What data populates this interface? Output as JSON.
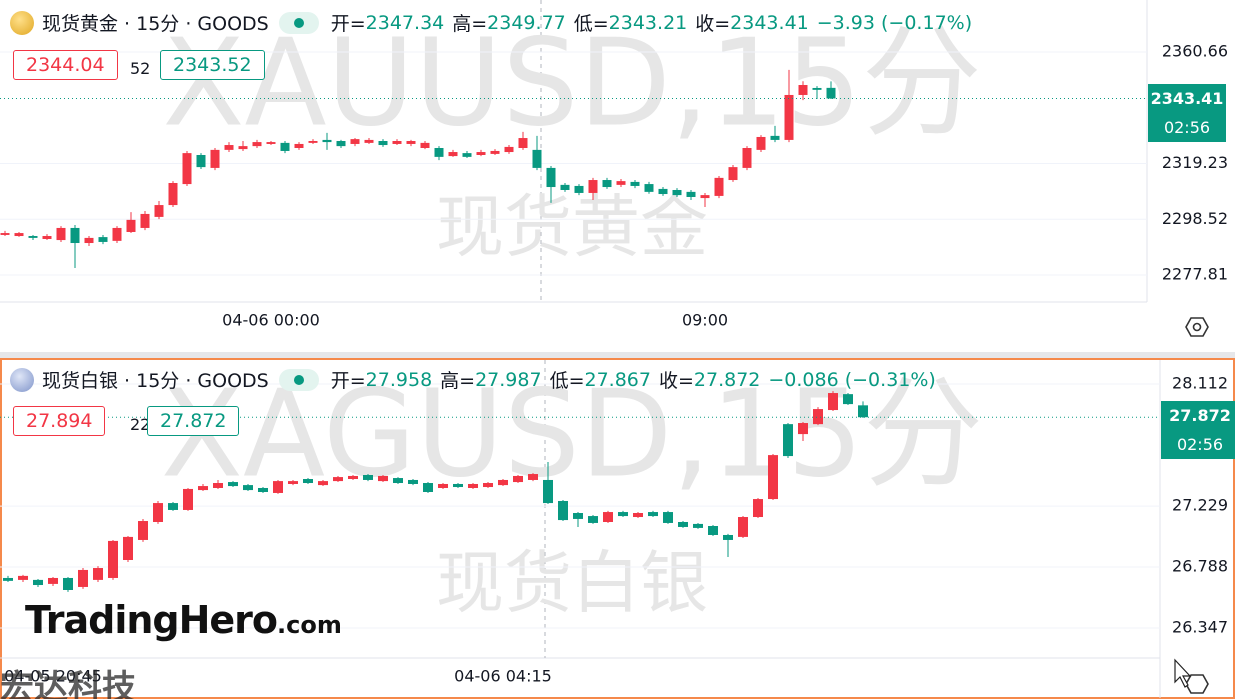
{
  "chart_data": [
    {
      "type": "candlestick",
      "title": "现货黄金 · 15分 · GOODS",
      "quote": [
        {
          "label": "开=",
          "value": "2347.34"
        },
        {
          "label": "高=",
          "value": "2349.77"
        },
        {
          "label": "低=",
          "value": "2343.21"
        },
        {
          "label": "收=",
          "value": "2343.41"
        }
      ],
      "change": "−3.93 (−0.17%)",
      "bid": "2344.04",
      "spread": "52",
      "ask": "2343.52",
      "last_price_label": "2343.41",
      "countdown": "02:56",
      "watermark": "XAUUSD,15分",
      "watermark_name": "现货黄金",
      "up_color": "#f23645",
      "down_color": "#089981",
      "ylim": [
        2267.79,
        2379.98
      ],
      "yticks": [
        2277.81,
        2298.52,
        2319.23,
        2360.66
      ],
      "grid": true,
      "categories": [
        null,
        null,
        null,
        null,
        null,
        null,
        null,
        null,
        null,
        null,
        null,
        null,
        null,
        null,
        null,
        null,
        null,
        null,
        null,
        "04-06 00:00",
        null,
        null,
        null,
        null,
        null,
        null,
        null,
        null,
        null,
        null,
        null,
        null,
        null,
        null,
        null,
        null,
        null,
        null,
        null,
        null,
        null,
        null,
        null,
        null,
        null,
        null,
        null,
        null,
        null,
        null,
        "09:00",
        null,
        null,
        null,
        null,
        null,
        null,
        null,
        null,
        null
      ],
      "ohlc": [
        [
          2292.7,
          2294.2,
          2292.3,
          2293.4
        ],
        [
          2292.3,
          2293.8,
          2292.0,
          2293.4
        ],
        [
          2292.3,
          2292.7,
          2290.8,
          2291.6
        ],
        [
          2291.2,
          2293.0,
          2290.8,
          2292.3
        ],
        [
          2290.8,
          2296.0,
          2290.1,
          2295.3
        ],
        [
          2295.3,
          2296.4,
          2280.4,
          2289.7
        ],
        [
          2289.7,
          2292.3,
          2288.6,
          2291.6
        ],
        [
          2291.9,
          2292.7,
          2289.3,
          2290.1
        ],
        [
          2290.5,
          2296.0,
          2289.7,
          2295.3
        ],
        [
          2293.8,
          2301.2,
          2293.4,
          2298.3
        ],
        [
          2295.3,
          2301.6,
          2294.5,
          2300.5
        ],
        [
          2299.4,
          2305.3,
          2298.6,
          2303.8
        ],
        [
          2303.8,
          2312.7,
          2303.1,
          2312.0
        ],
        [
          2311.6,
          2323.9,
          2310.9,
          2323.1
        ],
        [
          2322.4,
          2323.1,
          2317.2,
          2317.9
        ],
        [
          2317.6,
          2325.0,
          2316.8,
          2324.3
        ],
        [
          2324.3,
          2327.2,
          2323.5,
          2326.1
        ],
        [
          2324.6,
          2327.6,
          2323.9,
          2325.7
        ],
        [
          2325.7,
          2328.0,
          2325.0,
          2327.2
        ],
        [
          2326.5,
          2327.6,
          2326.1,
          2327.2
        ],
        [
          2326.9,
          2327.6,
          2323.1,
          2323.9
        ],
        [
          2325.0,
          2327.2,
          2324.3,
          2326.5
        ],
        [
          2326.9,
          2328.3,
          2326.5,
          2327.6
        ],
        [
          2328.0,
          2330.6,
          2324.3,
          2327.2
        ],
        [
          2327.6,
          2328.0,
          2325.0,
          2325.7
        ],
        [
          2326.5,
          2328.7,
          2325.7,
          2328.3
        ],
        [
          2326.9,
          2328.7,
          2326.5,
          2328.0
        ],
        [
          2327.6,
          2328.3,
          2325.4,
          2326.1
        ],
        [
          2326.5,
          2328.3,
          2326.1,
          2327.6
        ],
        [
          2326.5,
          2328.0,
          2325.7,
          2327.6
        ],
        [
          2325.0,
          2327.6,
          2324.6,
          2326.9
        ],
        [
          2325.0,
          2325.7,
          2320.5,
          2321.7
        ],
        [
          2322.0,
          2324.3,
          2321.7,
          2323.5
        ],
        [
          2323.1,
          2323.9,
          2321.3,
          2321.7
        ],
        [
          2322.4,
          2324.3,
          2322.0,
          2323.5
        ],
        [
          2322.8,
          2324.6,
          2322.4,
          2323.9
        ],
        [
          2323.5,
          2326.1,
          2322.8,
          2325.4
        ],
        [
          2325.0,
          2331.0,
          2324.3,
          2328.7
        ],
        [
          2324.3,
          2329.5,
          2316.8,
          2317.6
        ],
        [
          2317.6,
          2318.3,
          2304.6,
          2310.5
        ],
        [
          2311.3,
          2312.0,
          2308.7,
          2309.4
        ],
        [
          2310.9,
          2311.6,
          2307.5,
          2308.3
        ],
        [
          2308.3,
          2313.9,
          2305.7,
          2313.1
        ],
        [
          2313.1,
          2313.9,
          2309.8,
          2310.5
        ],
        [
          2311.3,
          2313.5,
          2310.5,
          2312.7
        ],
        [
          2312.4,
          2313.1,
          2310.1,
          2310.9
        ],
        [
          2311.6,
          2312.4,
          2308.0,
          2308.7
        ],
        [
          2309.8,
          2310.5,
          2307.2,
          2307.9
        ],
        [
          2309.4,
          2310.1,
          2306.8,
          2307.5
        ],
        [
          2308.7,
          2309.4,
          2305.7,
          2306.8
        ],
        [
          2306.4,
          2308.3,
          2303.1,
          2307.5
        ],
        [
          2307.2,
          2314.6,
          2306.4,
          2313.9
        ],
        [
          2313.1,
          2318.7,
          2312.4,
          2317.9
        ],
        [
          2317.6,
          2325.7,
          2316.8,
          2325.0
        ],
        [
          2324.3,
          2329.8,
          2323.5,
          2329.1
        ],
        [
          2329.5,
          2333.2,
          2327.2,
          2328.0
        ],
        [
          2328.0,
          2354.0,
          2327.2,
          2344.7
        ],
        [
          2344.7,
          2349.8,
          2342.8,
          2348.4
        ],
        [
          2347.3,
          2348.0,
          2343.2,
          2346.6
        ],
        [
          2347.34,
          2349.77,
          2343.21,
          2343.41
        ]
      ]
    },
    {
      "type": "candlestick",
      "title": "现货白银 · 15分 · GOODS",
      "quote": [
        {
          "label": "开=",
          "value": "27.958"
        },
        {
          "label": "高=",
          "value": "27.987"
        },
        {
          "label": "低=",
          "value": "27.867"
        },
        {
          "label": "收=",
          "value": "27.872"
        }
      ],
      "change": "−0.086 (−0.31%)",
      "bid": "27.894",
      "spread": "22",
      "ask": "27.872",
      "last_price_label": "27.872",
      "countdown": "02:56",
      "watermark": "XAGUSD,15分",
      "watermark_name": "现货白银",
      "up_color": "#f23645",
      "down_color": "#089981",
      "ylim": [
        26.13,
        28.286
      ],
      "yticks": [
        26.347,
        26.788,
        27.229,
        28.112
      ],
      "grid": true,
      "categories": [
        null,
        null,
        null,
        "04-05 20:45",
        null,
        null,
        null,
        null,
        null,
        null,
        null,
        null,
        null,
        null,
        null,
        null,
        null,
        null,
        null,
        null,
        null,
        null,
        null,
        null,
        null,
        null,
        null,
        null,
        null,
        null,
        null,
        null,
        null,
        "04-06 04:15",
        null,
        null,
        null,
        null,
        null,
        null,
        null,
        null,
        null,
        null,
        null,
        null,
        null,
        null,
        null,
        null,
        null,
        null,
        null,
        null,
        null,
        null,
        null,
        null
      ],
      "ohlc": [
        [
          26.709,
          26.724,
          26.68,
          26.688
        ],
        [
          26.695,
          26.731,
          26.68,
          26.724
        ],
        [
          26.695,
          26.702,
          26.644,
          26.658
        ],
        [
          26.666,
          26.716,
          26.651,
          26.709
        ],
        [
          26.709,
          26.716,
          26.608,
          26.622
        ],
        [
          26.644,
          26.781,
          26.63,
          26.767
        ],
        [
          26.695,
          26.795,
          26.68,
          26.781
        ],
        [
          26.709,
          26.984,
          26.695,
          26.977
        ],
        [
          26.839,
          27.013,
          26.825,
          27.006
        ],
        [
          26.984,
          27.136,
          26.97,
          27.121
        ],
        [
          27.114,
          27.266,
          27.1,
          27.251
        ],
        [
          27.251,
          27.259,
          27.194,
          27.201
        ],
        [
          27.201,
          27.36,
          27.194,
          27.353
        ],
        [
          27.345,
          27.389,
          27.338,
          27.374
        ],
        [
          27.36,
          27.418,
          27.353,
          27.396
        ],
        [
          27.403,
          27.41,
          27.367,
          27.374
        ],
        [
          27.381,
          27.389,
          27.338,
          27.345
        ],
        [
          27.36,
          27.367,
          27.324,
          27.331
        ],
        [
          27.324,
          27.418,
          27.317,
          27.41
        ],
        [
          27.389,
          27.418,
          27.381,
          27.41
        ],
        [
          27.425,
          27.432,
          27.389,
          27.396
        ],
        [
          27.381,
          27.418,
          27.374,
          27.41
        ],
        [
          27.41,
          27.447,
          27.403,
          27.439
        ],
        [
          27.425,
          27.454,
          27.418,
          27.447
        ],
        [
          27.454,
          27.461,
          27.41,
          27.418
        ],
        [
          27.41,
          27.454,
          27.403,
          27.447
        ],
        [
          27.432,
          27.439,
          27.389,
          27.396
        ],
        [
          27.418,
          27.425,
          27.381,
          27.389
        ],
        [
          27.396,
          27.403,
          27.324,
          27.331
        ],
        [
          27.36,
          27.396,
          27.353,
          27.389
        ],
        [
          27.389,
          27.396,
          27.36,
          27.367
        ],
        [
          27.36,
          27.396,
          27.353,
          27.389
        ],
        [
          27.367,
          27.403,
          27.36,
          27.396
        ],
        [
          27.381,
          27.425,
          27.374,
          27.418
        ],
        [
          27.403,
          27.454,
          27.396,
          27.447
        ],
        [
          27.418,
          27.468,
          27.41,
          27.461
        ],
        [
          27.418,
          27.548,
          27.244,
          27.251
        ],
        [
          27.266,
          27.273,
          27.121,
          27.128
        ],
        [
          27.179,
          27.186,
          27.078,
          27.136
        ],
        [
          27.157,
          27.165,
          27.1,
          27.107
        ],
        [
          27.114,
          27.194,
          27.107,
          27.186
        ],
        [
          27.186,
          27.194,
          27.15,
          27.157
        ],
        [
          27.15,
          27.186,
          27.143,
          27.179
        ],
        [
          27.186,
          27.194,
          27.15,
          27.157
        ],
        [
          27.186,
          27.194,
          27.1,
          27.107
        ],
        [
          27.114,
          27.121,
          27.071,
          27.078
        ],
        [
          27.1,
          27.107,
          27.064,
          27.071
        ],
        [
          27.085,
          27.092,
          27.013,
          27.02
        ],
        [
          27.02,
          27.028,
          26.861,
          26.984
        ],
        [
          27.006,
          27.157,
          26.998,
          27.15
        ],
        [
          27.15,
          27.288,
          27.143,
          27.28
        ],
        [
          27.28,
          27.606,
          27.273,
          27.598
        ],
        [
          27.822,
          27.83,
          27.577,
          27.591
        ],
        [
          27.75,
          27.837,
          27.7,
          27.83
        ],
        [
          27.822,
          27.945,
          27.815,
          27.931
        ],
        [
          27.924,
          28.061,
          27.917,
          28.047
        ],
        [
          28.039,
          28.047,
          27.96,
          27.967
        ],
        [
          27.958,
          27.987,
          27.867,
          27.872
        ]
      ]
    }
  ],
  "branding": {
    "logo": "TradingHero",
    "logo_suffix": ".com",
    "publisher": "宏达科技"
  }
}
